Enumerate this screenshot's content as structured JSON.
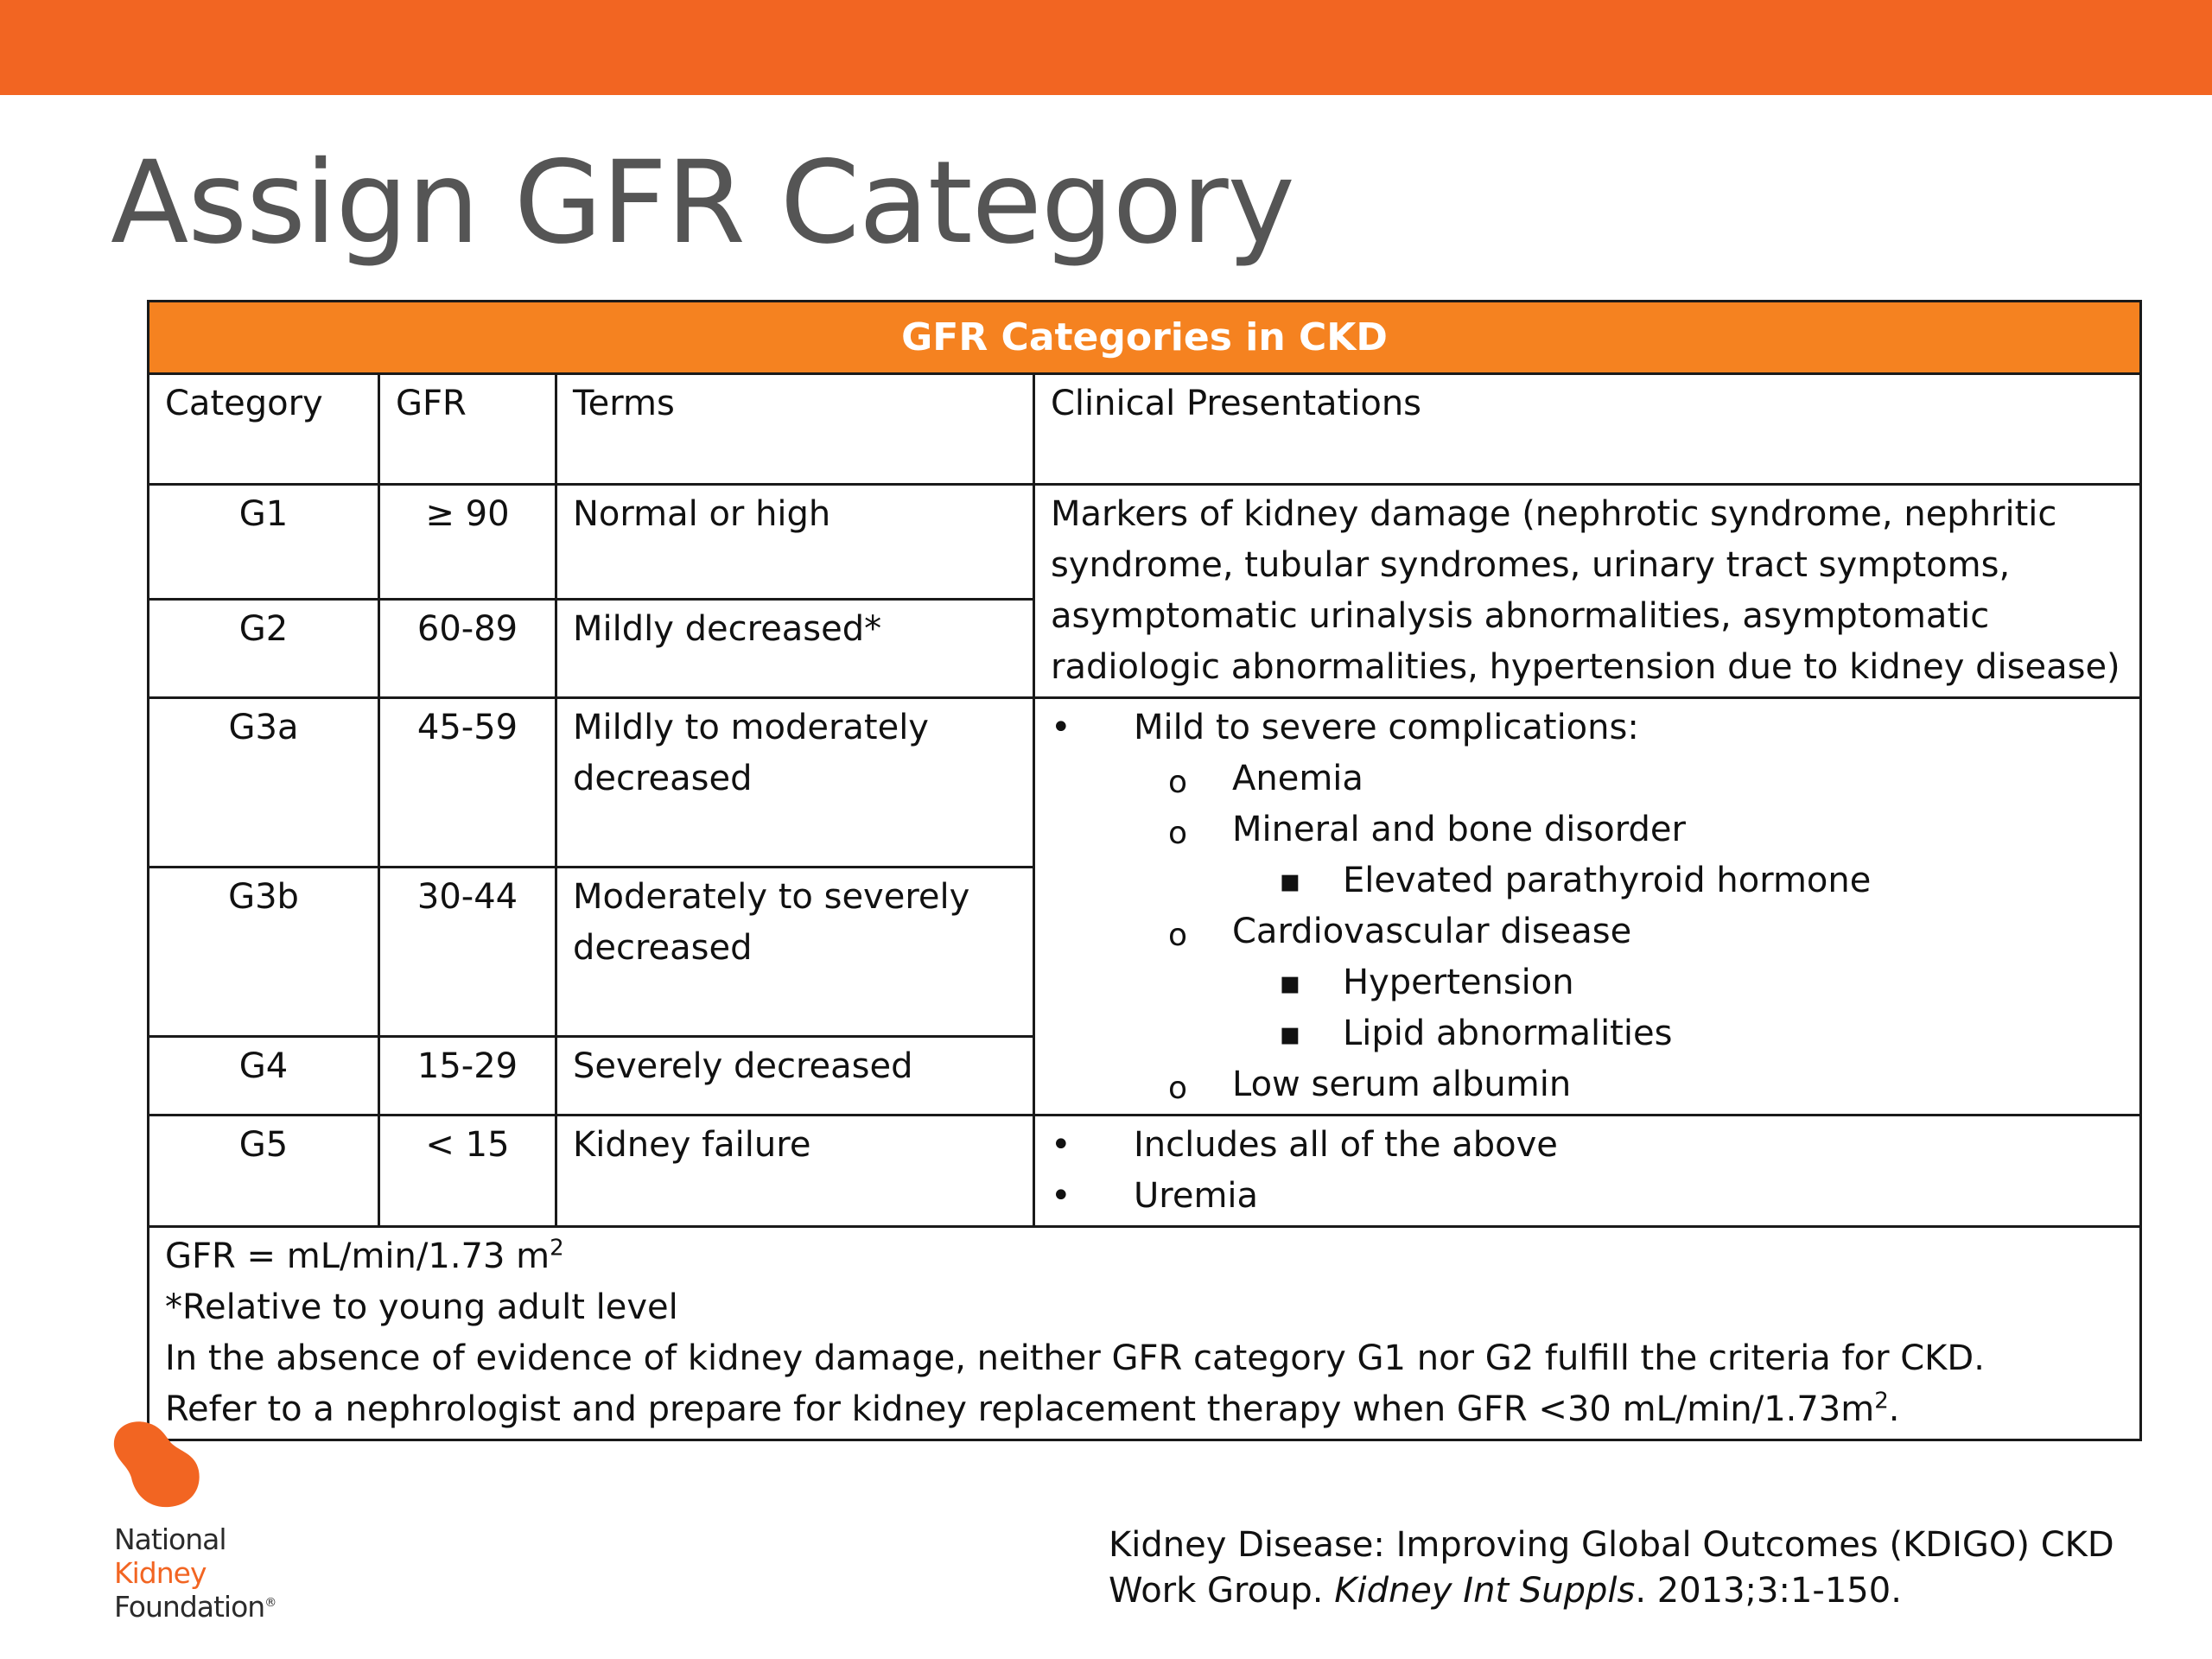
{
  "colors": {
    "topbar": "#f26522",
    "table_header": "#f58220",
    "title_text": "#555555",
    "logo_orange": "#f26522"
  },
  "slide": {
    "title": "Assign GFR Category"
  },
  "table": {
    "caption": "GFR Categories in CKD",
    "headers": {
      "category": "Category",
      "gfr": "GFR",
      "terms": "Terms",
      "clinical": "Clinical Presentations"
    },
    "rows": [
      {
        "category": "G1",
        "gfr": "≥ 90",
        "terms": "Normal or high"
      },
      {
        "category": "G2",
        "gfr": "60-89",
        "terms": "Mildly decreased*"
      },
      {
        "category": "G3a",
        "gfr": "45-59",
        "terms": "Mildly to moderately decreased"
      },
      {
        "category": "G3b",
        "gfr": "30-44",
        "terms": "Moderately to severely decreased"
      },
      {
        "category": "G4",
        "gfr": "15-29",
        "terms": "Severely decreased"
      },
      {
        "category": "G5",
        "gfr": "< 15",
        "terms": "Kidney failure"
      }
    ],
    "clinical": {
      "g1_g2": "Markers of kidney damage (nephrotic syndrome, nephritic syndrome, tubular syndromes, urinary tract symptoms, asymptomatic urinalysis abnormalities, asymptomatic radiologic abnormalities, hypertension due to kidney disease)",
      "g3_g4": [
        {
          "level": 1,
          "text": "Mild to severe complications:"
        },
        {
          "level": 2,
          "text": "Anemia"
        },
        {
          "level": 2,
          "text": "Mineral and bone disorder"
        },
        {
          "level": 3,
          "text": "Elevated parathyroid hormone"
        },
        {
          "level": 2,
          "text": "Cardiovascular disease"
        },
        {
          "level": 3,
          "text": "Hypertension"
        },
        {
          "level": 3,
          "text": "Lipid abnormalities"
        },
        {
          "level": 2,
          "text": "Low serum albumin"
        }
      ],
      "g5": [
        {
          "level": 1,
          "text": "Includes all of the above"
        },
        {
          "level": 1,
          "text": "Uremia"
        }
      ]
    },
    "footnotes": {
      "units_prefix": "GFR = mL/min/1.73 m",
      "units_sup": "2",
      "note1": "*Relative to young adult level",
      "note2": "In the absence of evidence of kidney damage, neither GFR category G1 nor G2 fulfill the criteria for CKD.",
      "note3_prefix": "Refer to a nephrologist and prepare for kidney replacement therapy when GFR <30 mL/min/1.73m",
      "note3_sup": "2",
      "note3_suffix": "."
    }
  },
  "logo": {
    "line1": "National",
    "line2": "Kidney",
    "line3": "Foundation",
    "mark": "®"
  },
  "citation": {
    "part1": "Kidney Disease: Improving Global Outcomes (KDIGO) CKD Work Group. ",
    "journal": "Kidney Int Suppls",
    "part2": ". 2013;3:1-150."
  }
}
